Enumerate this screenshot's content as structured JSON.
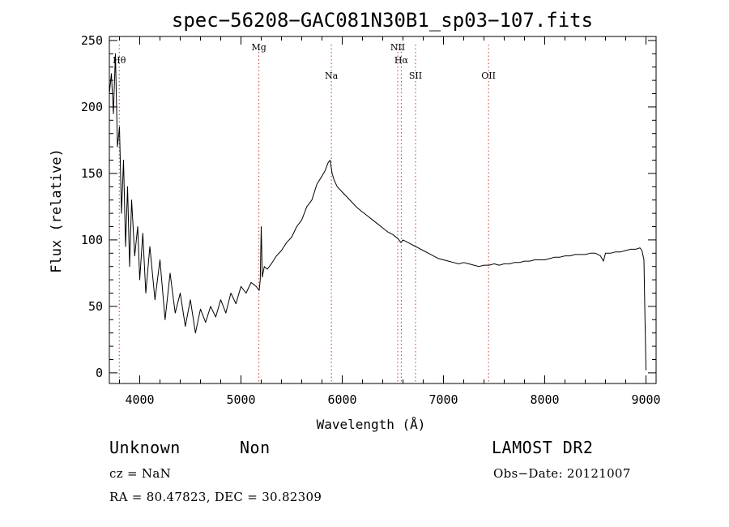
{
  "chart_data": {
    "type": "line",
    "title": "spec−56208−GAC081N30B1_sp03−107.fits",
    "xlabel": "Wavelength (Å)",
    "ylabel": "Flux (relative)",
    "xlim": [
      3700,
      9100
    ],
    "ylim": [
      -8,
      253
    ],
    "x_ticks": [
      4000,
      5000,
      6000,
      7000,
      8000,
      9000
    ],
    "y_ticks": [
      0,
      50,
      100,
      150,
      200,
      250
    ],
    "grid": false,
    "series": [
      {
        "x": [
          3700,
          3720,
          3740,
          3760,
          3780,
          3800,
          3820,
          3840,
          3860,
          3880,
          3900,
          3920,
          3950,
          3980,
          4000,
          4030,
          4060,
          4100,
          4150,
          4200,
          4250,
          4300,
          4350,
          4400,
          4450,
          4500,
          4550,
          4600,
          4650,
          4700,
          4750,
          4800,
          4850,
          4900,
          4950,
          5000,
          5050,
          5100,
          5150,
          5180,
          5190,
          5200,
          5210,
          5230,
          5260,
          5300,
          5350,
          5400,
          5450,
          5500,
          5550,
          5600,
          5650,
          5700,
          5750,
          5800,
          5830,
          5860,
          5880,
          5890,
          5900,
          5920,
          5950,
          6000,
          6050,
          6100,
          6150,
          6200,
          6250,
          6300,
          6350,
          6400,
          6450,
          6500,
          6550,
          6580,
          6600,
          6650,
          6700,
          6750,
          6800,
          6850,
          6900,
          6950,
          7000,
          7050,
          7100,
          7150,
          7200,
          7250,
          7300,
          7350,
          7400,
          7450,
          7500,
          7550,
          7600,
          7650,
          7700,
          7750,
          7800,
          7850,
          7900,
          7950,
          8000,
          8050,
          8100,
          8150,
          8200,
          8250,
          8300,
          8350,
          8400,
          8450,
          8500,
          8550,
          8580,
          8600,
          8650,
          8700,
          8750,
          8800,
          8850,
          8900,
          8940,
          8960,
          8980,
          8990,
          9000
        ],
        "y": [
          210,
          225,
          195,
          240,
          170,
          185,
          120,
          160,
          95,
          140,
          80,
          130,
          88,
          110,
          70,
          105,
          60,
          95,
          55,
          85,
          40,
          75,
          45,
          60,
          35,
          55,
          30,
          48,
          38,
          50,
          42,
          55,
          45,
          60,
          52,
          65,
          60,
          68,
          65,
          62,
          70,
          110,
          72,
          80,
          78,
          82,
          88,
          92,
          98,
          102,
          110,
          115,
          125,
          130,
          142,
          148,
          152,
          158,
          160,
          155,
          150,
          145,
          140,
          136,
          132,
          128,
          124,
          121,
          118,
          115,
          112,
          109,
          106,
          104,
          101,
          98,
          100,
          98,
          96,
          94,
          92,
          90,
          88,
          86,
          85,
          84,
          83,
          82,
          83,
          82,
          81,
          80,
          81,
          81,
          82,
          81,
          82,
          82,
          83,
          83,
          84,
          84,
          85,
          85,
          85,
          86,
          87,
          87,
          88,
          88,
          89,
          89,
          89,
          90,
          90,
          88,
          84,
          90,
          90,
          91,
          91,
          92,
          93,
          93,
          94,
          92,
          85,
          40,
          2
        ]
      }
    ],
    "lines": [
      {
        "label": "Hθ",
        "x": 3798
      },
      {
        "label": "Mg",
        "x": 5177
      },
      {
        "label": "Na",
        "x": 5893
      },
      {
        "label": "NII",
        "x": 6548
      },
      {
        "label": "Hα",
        "x": 6583
      },
      {
        "label": "SII",
        "x": 6724
      },
      {
        "label": "OII",
        "x": 7445
      }
    ],
    "line_color": "#cc3333"
  },
  "info": {
    "type_label": "Unknown",
    "subclass_label": "Non",
    "survey_label": "LAMOST DR2",
    "cz_text": "cz = NaN",
    "obs_date_text": "Obs−Date: 20121007",
    "radec_text": "RA =  80.47823, DEC =  30.82309"
  }
}
